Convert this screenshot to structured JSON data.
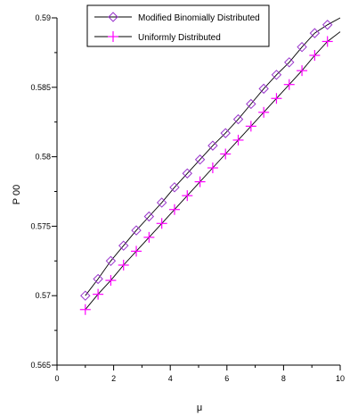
{
  "chart_data": {
    "type": "line",
    "xlabel": "μ",
    "ylabel": "P 00",
    "xlim": [
      0,
      10
    ],
    "ylim": [
      0.565,
      0.59
    ],
    "x_ticks": [
      0,
      2,
      4,
      6,
      8,
      10
    ],
    "y_ticks": [
      0.565,
      0.57,
      0.575,
      0.58,
      0.585,
      0.59
    ],
    "y_tick_labels": [
      "0.565",
      "0.57",
      "0.575",
      "0.58",
      "0.585",
      "0.59"
    ],
    "legend_position": "top-left",
    "series": [
      {
        "name": "Modified Binomially Distributed",
        "marker": "diamond",
        "marker_color": "#9933cc",
        "line_color": "#000000",
        "x": [
          1.0,
          1.45,
          1.9,
          2.35,
          2.8,
          3.25,
          3.7,
          4.15,
          4.6,
          5.05,
          5.5,
          5.95,
          6.4,
          6.85,
          7.3,
          7.75,
          8.2,
          8.65,
          9.1,
          9.55
        ],
        "values": [
          0.57,
          0.5712,
          0.5725,
          0.5736,
          0.5747,
          0.5757,
          0.5767,
          0.5778,
          0.5788,
          0.5798,
          0.5808,
          0.5817,
          0.5827,
          0.5838,
          0.5849,
          0.5859,
          0.5868,
          0.5879,
          0.5889,
          0.5895
        ],
        "line_x": [
          1.0,
          10.0
        ],
        "line_values": [
          0.5695,
          0.59
        ]
      },
      {
        "name": "Uniformly Distributed",
        "marker": "plus",
        "marker_color": "#ff00ff",
        "line_color": "#000000",
        "x": [
          1.0,
          1.45,
          1.9,
          2.35,
          2.8,
          3.25,
          3.7,
          4.15,
          4.6,
          5.05,
          5.5,
          5.95,
          6.4,
          6.85,
          7.3,
          7.75,
          8.2,
          8.65,
          9.1,
          9.55
        ],
        "values": [
          0.569,
          0.5701,
          0.5711,
          0.5722,
          0.5732,
          0.5742,
          0.5752,
          0.5762,
          0.5772,
          0.5782,
          0.5792,
          0.5802,
          0.5812,
          0.5822,
          0.5832,
          0.5842,
          0.5852,
          0.5862,
          0.5873,
          0.5883
        ],
        "line_x": [
          1.0,
          10.0
        ],
        "line_values": [
          0.5688,
          0.589
        ]
      }
    ]
  }
}
